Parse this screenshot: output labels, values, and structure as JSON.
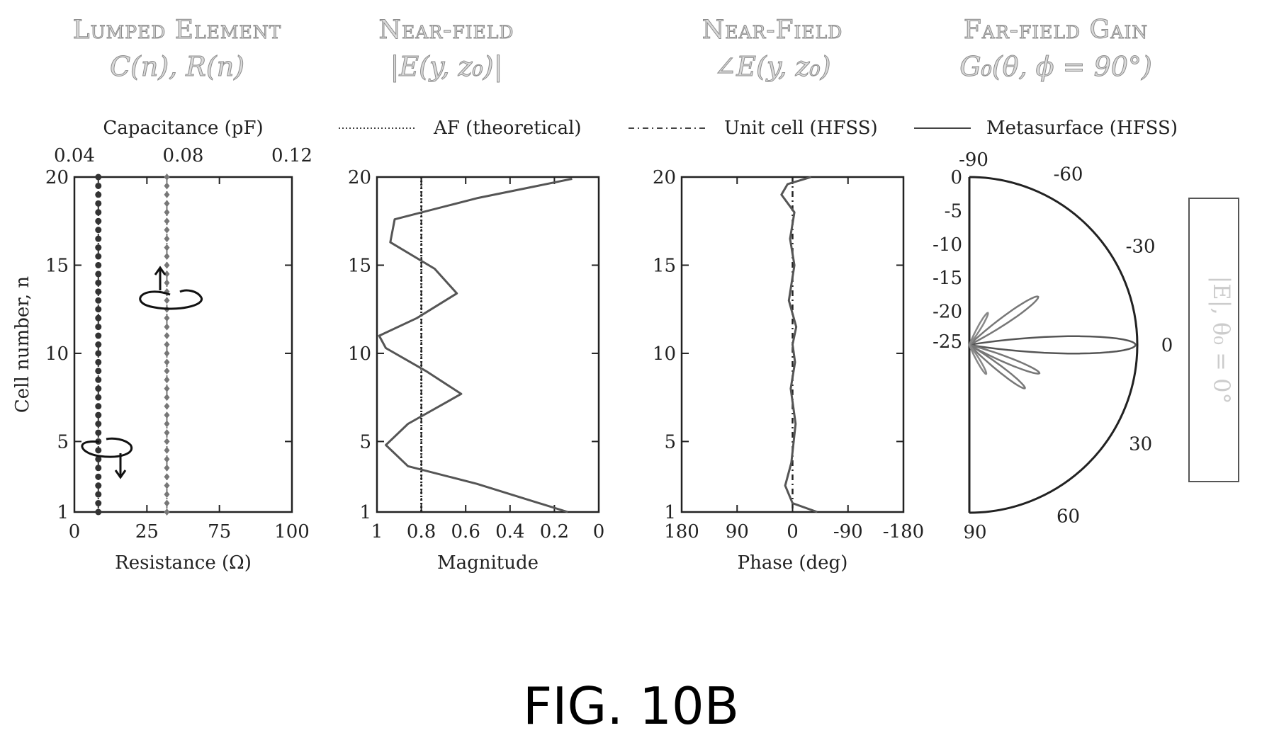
{
  "headers": [
    {
      "title": "Lumped Element",
      "subtitle": "C(n), R(n)"
    },
    {
      "title": "Near-field",
      "subtitle": "|E(y, z₀)|"
    },
    {
      "title": "Near-Field",
      "subtitle": "∠E(y, z₀)"
    },
    {
      "title": "Far-field Gain",
      "subtitle": "G₀(θ, ϕ = 90°)"
    }
  ],
  "legend": [
    {
      "label": "AF (theoretical)",
      "style": "dotted"
    },
    {
      "label": "Unit cell (HFSS)",
      "style": "dashdot"
    },
    {
      "label": "Metasurface (HFSS)",
      "style": "solid"
    }
  ],
  "side_label": "|E|, θ₀ = 0°",
  "figure_caption": "FIG. 10B",
  "chart_data": [
    {
      "type": "scatter",
      "panel": "lumped-element",
      "ylabel": "Cell number, n",
      "xlabel": "Resistance (Ω)",
      "x2label": "Capacitance (pF)",
      "yticks": [
        "1",
        "5",
        "10",
        "15",
        "20"
      ],
      "xticks": [
        "0",
        "25",
        "75",
        "100"
      ],
      "x2ticks": [
        "0.04",
        "0.08",
        "0.12"
      ],
      "ylim": [
        1,
        20
      ],
      "series": [
        {
          "name": "Resistance",
          "x": 11,
          "y_from": 1,
          "y_to": 20
        },
        {
          "name": "Capacitance",
          "x": 0.074,
          "y_from": 1,
          "y_to": 20
        }
      ]
    },
    {
      "type": "line",
      "panel": "near-field-magnitude",
      "xlabel": "Magnitude",
      "yticks": [
        "1",
        "5",
        "10",
        "15",
        "20"
      ],
      "xticks": [
        "1",
        "0.8",
        "0.6",
        "0.4",
        "0.2",
        "0"
      ],
      "xlim": [
        1,
        0
      ],
      "ylim": [
        1,
        20
      ],
      "series": [
        {
          "name": "AF (theoretical)",
          "x": [
            0.8,
            0.8
          ],
          "y": [
            1,
            20
          ]
        },
        {
          "name": "Unit cell (HFSS)",
          "x": [
            0.8,
            0.8
          ],
          "y": [
            1,
            20
          ]
        },
        {
          "name": "Metasurface (HFSS)",
          "x": [
            0.14,
            0.55,
            0.86,
            0.96,
            0.86,
            0.62,
            0.78,
            0.96,
            0.99,
            0.82,
            0.64,
            0.74,
            0.94,
            0.92,
            0.55,
            0.12
          ],
          "y": [
            1,
            2.6,
            3.6,
            4.8,
            6.0,
            7.7,
            9.0,
            10.3,
            11.0,
            12.0,
            13.4,
            14.8,
            16.3,
            17.6,
            18.8,
            19.9
          ]
        }
      ]
    },
    {
      "type": "line",
      "panel": "near-field-phase",
      "xlabel": "Phase (deg)",
      "yticks": [
        "1",
        "5",
        "10",
        "15",
        "20"
      ],
      "xticks": [
        "180",
        "90",
        "0",
        "-90",
        "-180"
      ],
      "xlim": [
        180,
        -180
      ],
      "ylim": [
        1,
        20
      ],
      "series": [
        {
          "name": "AF (theoretical)",
          "x": [
            0,
            0
          ],
          "y": [
            1,
            20
          ]
        },
        {
          "name": "Unit cell (HFSS)",
          "x": [
            0,
            0
          ],
          "y": [
            1,
            20
          ]
        },
        {
          "name": "Metasurface (HFSS)",
          "x": [
            -40,
            0,
            12,
            2,
            -5,
            3,
            -4,
            0,
            -6,
            6,
            -3,
            4,
            -3,
            18,
            8,
            -30
          ],
          "y": [
            1,
            1.5,
            2.5,
            3.8,
            6,
            8,
            9.5,
            10.5,
            11.5,
            13,
            15,
            16.5,
            18,
            19,
            19.6,
            20
          ]
        }
      ]
    },
    {
      "type": "polar",
      "panel": "far-field-gain",
      "radial_ticks": [
        "0",
        "-5",
        "-10",
        "-15",
        "-20",
        "-25"
      ],
      "angle_ticks": [
        "-90",
        "-60",
        "-30",
        "0",
        "30",
        "60",
        "90"
      ],
      "rlim_db": [
        -25,
        0
      ],
      "main_lobe": {
        "direction_deg": 0,
        "peak_db": 0
      },
      "side_lobes_deg": [
        -35,
        -20,
        22,
        38
      ]
    }
  ]
}
